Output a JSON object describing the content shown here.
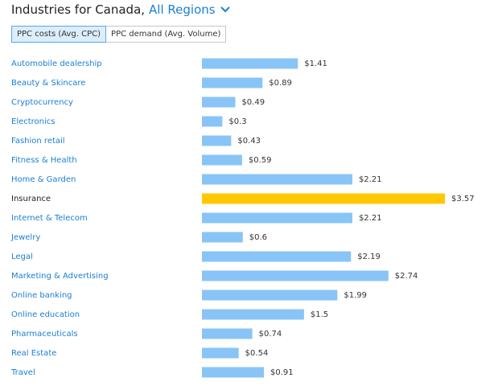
{
  "header": {
    "title": "Industries for Canada,",
    "region": "All Regions"
  },
  "tabs": [
    "PPC costs (Avg. CPC)",
    "PPC demand (Avg. Volume)"
  ],
  "chart_data": {
    "type": "bar",
    "categories": [
      "Automobile dealership",
      "Beauty & Skincare",
      "Cryptocurrency",
      "Electronics",
      "Fashion retail",
      "Fitness & Health",
      "Home & Garden",
      "Insurance",
      "Internet & Telecom",
      "Jewelry",
      "Legal",
      "Marketing & Advertising",
      "Online banking",
      "Online education",
      "Pharmaceuticals",
      "Real Estate",
      "Travel"
    ],
    "values": [
      1.41,
      0.89,
      0.49,
      0.3,
      0.43,
      0.59,
      2.21,
      3.57,
      2.21,
      0.6,
      2.19,
      2.74,
      1.99,
      1.5,
      0.74,
      0.54,
      0.91
    ],
    "value_labels": [
      "$1.41",
      "$0.89",
      "$0.49",
      "$0.3",
      "$0.43",
      "$0.59",
      "$2.21",
      "$3.57",
      "$2.21",
      "$0.6",
      "$2.19",
      "$2.74",
      "$1.99",
      "$1.5",
      "$0.74",
      "$0.54",
      "$0.91"
    ],
    "color": "#88c5f6",
    "colors": [
      "#88c5f6",
      "#88c5f6",
      "#88c5f6",
      "#88c5f6",
      "#88c5f6",
      "#88c5f6",
      "#88c5f6",
      "#ffc800",
      "#88c5f6",
      "#88c5f6",
      "#88c5f6",
      "#88c5f6",
      "#88c5f6",
      "#88c5f6",
      "#88c5f6",
      "#88c5f6",
      "#88c5f6"
    ]
  }
}
